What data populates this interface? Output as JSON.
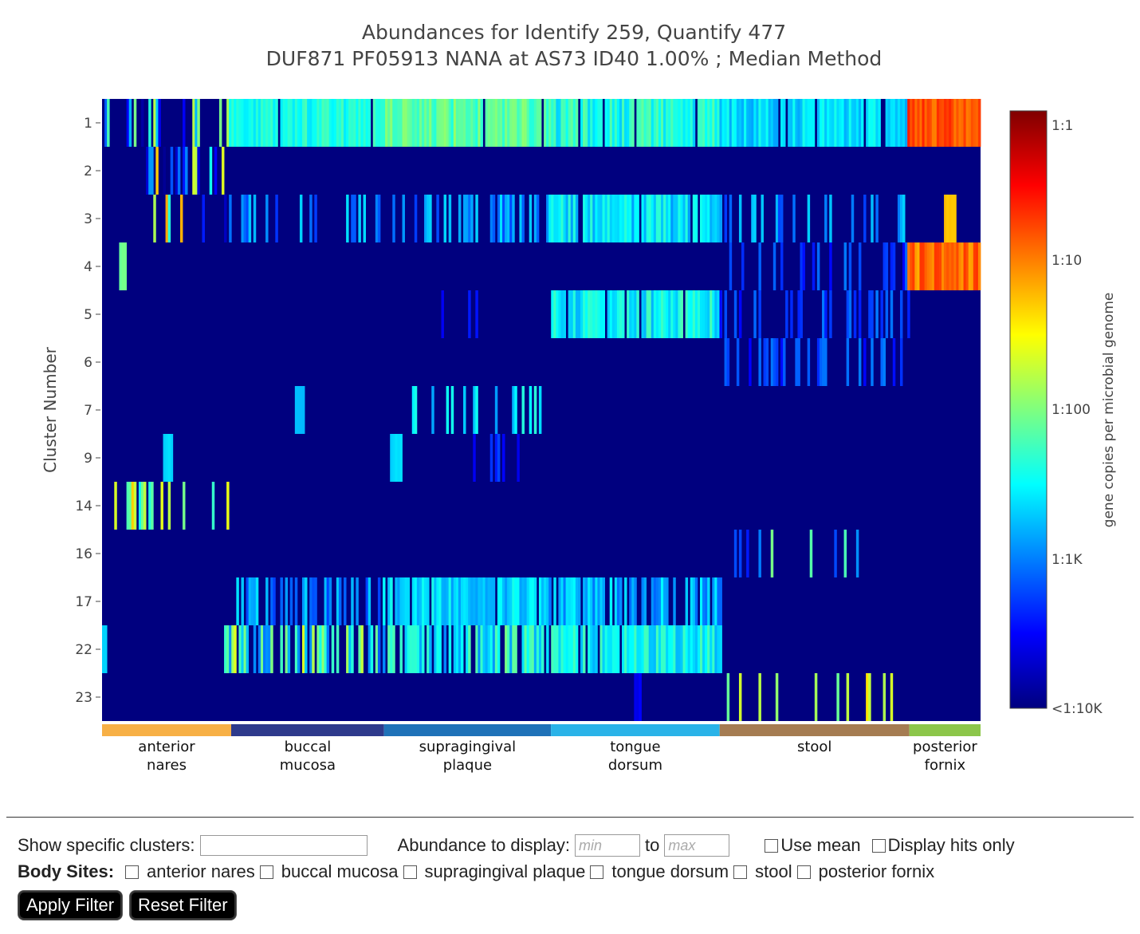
{
  "chart_data": {
    "type": "heatmap",
    "title": "Abundances for Identify 259, Quantify 477",
    "subtitle": "DUF871 PF05913 NANA at AS73 ID40 1.00% ; Median Method",
    "ylabel": "Cluster Number",
    "rows": [
      "1",
      "2",
      "3",
      "4",
      "5",
      "6",
      "7",
      "9",
      "14",
      "16",
      "17",
      "22",
      "23"
    ],
    "colorbar": {
      "title": "gene copies per microbial genome",
      "ticks": [
        "1:1",
        "1:10",
        "1:100",
        "1:1K",
        "<1:10K"
      ],
      "tick_values": [
        0,
        -1,
        -2,
        -3,
        -4
      ],
      "colorscale": [
        "#00007f",
        "#0000ff",
        "#007fff",
        "#00ffff",
        "#7fff7f",
        "#ffff00",
        "#ff7f00",
        "#ff0000",
        "#7f0000"
      ]
    },
    "body_sites": [
      {
        "name": "anterior nares",
        "label_lines": [
          "anterior",
          "nares"
        ],
        "color": "#f7b046",
        "from": 0,
        "to": 0.147
      },
      {
        "name": "buccal mucosa",
        "label_lines": [
          "buccal",
          "mucosa"
        ],
        "color": "#2e3a8c",
        "from": 0.147,
        "to": 0.321
      },
      {
        "name": "supragingival plaque",
        "label_lines": [
          "supragingival",
          "plaque"
        ],
        "color": "#1f72b8",
        "from": 0.321,
        "to": 0.511
      },
      {
        "name": "tongue dorsum",
        "label_lines": [
          "tongue",
          "dorsum"
        ],
        "color": "#2ab3e8",
        "from": 0.511,
        "to": 0.703
      },
      {
        "name": "stool",
        "label_lines": [
          "stool"
        ],
        "color": "#a57c52",
        "from": 0.703,
        "to": 0.919
      },
      {
        "name": "posterior fornix",
        "label_lines": [
          "posterior",
          "fornix"
        ],
        "color": "#8cc64a",
        "from": 0.919,
        "to": 1.0
      }
    ],
    "row_patterns": [
      {
        "row": "1",
        "segments": [
          [
            0,
            0.147,
            0.25,
            -1.3,
            -4
          ],
          [
            0.147,
            0.321,
            0.95,
            -2.2,
            -2.6
          ],
          [
            0.321,
            0.511,
            0.95,
            -1.9,
            -2.4
          ],
          [
            0.511,
            0.703,
            0.95,
            -2.1,
            -2.7
          ],
          [
            0.703,
            0.919,
            0.95,
            -2.4,
            -2.9
          ],
          [
            0.919,
            1.0,
            1.0,
            -0.6,
            -1.0
          ]
        ]
      },
      {
        "row": "2",
        "segments": [
          [
            0.04,
            0.147,
            0.35,
            -1.2,
            -4
          ]
        ]
      },
      {
        "row": "3",
        "segments": [
          [
            0.05,
            0.147,
            0.12,
            -0.9,
            -4
          ],
          [
            0.147,
            0.321,
            0.2,
            -2.6,
            -3.3
          ],
          [
            0.321,
            0.511,
            0.35,
            -2.6,
            -3.3
          ],
          [
            0.511,
            0.703,
            0.9,
            -2.3,
            -2.9
          ],
          [
            0.703,
            0.919,
            0.3,
            -2.6,
            -3.3
          ],
          [
            0.96,
            0.97,
            1.0,
            -1.2,
            -1.3
          ]
        ]
      },
      {
        "row": "4",
        "segments": [
          [
            0.022,
            0.026,
            1.0,
            -2.0,
            -2.1
          ],
          [
            0.71,
            0.919,
            0.25,
            -3.0,
            -3.5
          ],
          [
            0.919,
            1.0,
            0.95,
            -0.7,
            -1.2
          ]
        ]
      },
      {
        "row": "5",
        "segments": [
          [
            0.33,
            0.511,
            0.05,
            -3.4,
            -3.7
          ],
          [
            0.511,
            0.703,
            0.9,
            -2.2,
            -2.8
          ],
          [
            0.703,
            0.919,
            0.3,
            -3.0,
            -3.5
          ]
        ]
      },
      {
        "row": "6",
        "segments": [
          [
            0.71,
            0.919,
            0.35,
            -3.0,
            -3.5
          ]
        ]
      },
      {
        "row": "7",
        "segments": [
          [
            0.22,
            0.23,
            1.0,
            -2.7,
            -2.8
          ],
          [
            0.32,
            0.5,
            0.25,
            -2.3,
            -2.9
          ]
        ]
      },
      {
        "row": "9",
        "segments": [
          [
            0.07,
            0.08,
            1.0,
            -2.6,
            -2.7
          ],
          [
            0.33,
            0.34,
            1.0,
            -2.6,
            -2.7
          ],
          [
            0.42,
            0.48,
            0.15,
            -3.2,
            -3.6
          ]
        ]
      },
      {
        "row": "14",
        "segments": [
          [
            0.015,
            0.147,
            0.4,
            -1.3,
            -2.8
          ]
        ]
      },
      {
        "row": "16",
        "segments": [
          [
            0.71,
            0.86,
            0.12,
            -2.0,
            -3.4
          ]
        ]
      },
      {
        "row": "17",
        "segments": [
          [
            0.147,
            0.321,
            0.45,
            -2.6,
            -3.3
          ],
          [
            0.321,
            0.511,
            0.9,
            -2.4,
            -2.9
          ],
          [
            0.511,
            0.703,
            0.75,
            -2.5,
            -3.1
          ]
        ]
      },
      {
        "row": "22",
        "segments": [
          [
            0.0,
            0.005,
            1.0,
            -2.6,
            -2.7
          ],
          [
            0.14,
            0.321,
            0.7,
            -1.6,
            -3.2
          ],
          [
            0.321,
            0.511,
            0.7,
            -2.0,
            -3.0
          ],
          [
            0.511,
            0.703,
            0.95,
            -2.2,
            -2.8
          ]
        ]
      },
      {
        "row": "23",
        "segments": [
          [
            0.608,
            0.612,
            1.0,
            -3.5,
            -3.6
          ],
          [
            0.703,
            0.919,
            0.12,
            -1.4,
            -2.1
          ]
        ]
      }
    ]
  },
  "controls": {
    "clusters_label": "Show specific clusters:",
    "clusters_value": "",
    "abundance_label": "Abundance to display:",
    "min_placeholder": "min",
    "to_label": "to",
    "max_placeholder": "max",
    "use_mean_label": "Use mean",
    "hits_only_label": "Display hits only",
    "body_sites_label": "Body Sites:",
    "body_site_options": [
      "anterior nares",
      "buccal mucosa",
      "supragingival plaque",
      "tongue dorsum",
      "stool",
      "posterior fornix"
    ],
    "apply_label": "Apply Filter",
    "reset_label": "Reset Filter"
  }
}
